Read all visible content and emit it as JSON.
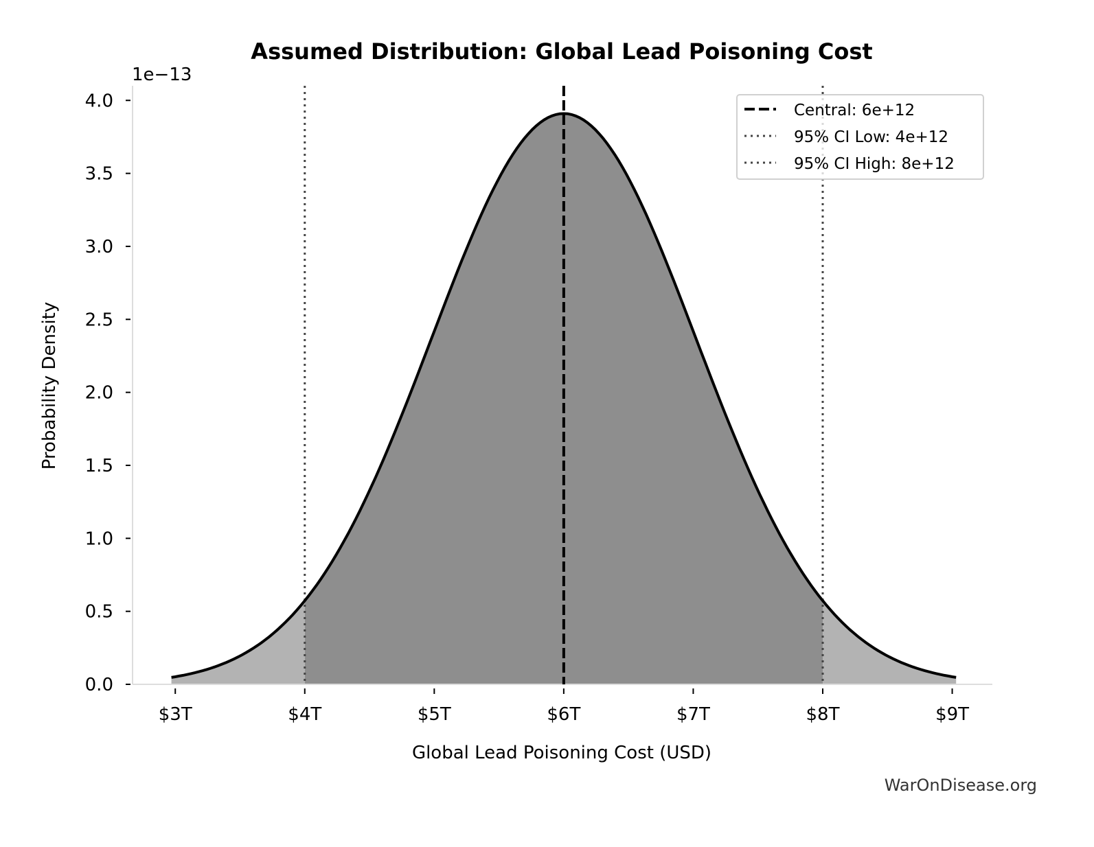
{
  "chart_data": {
    "type": "area",
    "title": "Assumed Distribution: Global Lead Poisoning Cost",
    "xlabel": "Global Lead Poisoning Cost (USD)",
    "ylabel": "Probability Density",
    "y_offset_label": "1e−13",
    "distribution": {
      "kind": "normal",
      "mean": 6000000000000.0,
      "sd": 1020400000000.0,
      "x_start": 2970000000000.0,
      "x_end": 9030000000000.0,
      "peak_density": 3.91e-13
    },
    "xlim": [
      2670000000000.0,
      9310000000000.0
    ],
    "ylim": [
      0,
      4.1e-13
    ],
    "x_ticks": [
      {
        "value": 3000000000000.0,
        "label": "$3T"
      },
      {
        "value": 4000000000000.0,
        "label": "$4T"
      },
      {
        "value": 5000000000000.0,
        "label": "$5T"
      },
      {
        "value": 6000000000000.0,
        "label": "$6T"
      },
      {
        "value": 7000000000000.0,
        "label": "$7T"
      },
      {
        "value": 8000000000000.0,
        "label": "$8T"
      },
      {
        "value": 9000000000000.0,
        "label": "$9T"
      }
    ],
    "y_ticks": [
      {
        "value": 0.0,
        "label": "0.0"
      },
      {
        "value": 0.5,
        "label": "0.5"
      },
      {
        "value": 1.0,
        "label": "1.0"
      },
      {
        "value": 1.5,
        "label": "1.5"
      },
      {
        "value": 2.0,
        "label": "2.0"
      },
      {
        "value": 2.5,
        "label": "2.5"
      },
      {
        "value": 3.0,
        "label": "3.0"
      },
      {
        "value": 3.5,
        "label": "3.5"
      },
      {
        "value": 4.0,
        "label": "4.0"
      }
    ],
    "reference_lines": [
      {
        "name": "Central: 6e+12",
        "x": 6000000000000.0,
        "style": "dashed",
        "color": "#000000"
      },
      {
        "name": "95% CI Low: 4e+12",
        "x": 4000000000000.0,
        "style": "dotted",
        "color": "#444444"
      },
      {
        "name": "95% CI High: 8e+12",
        "x": 8000000000000.0,
        "style": "dotted",
        "color": "#444444"
      }
    ],
    "colors": {
      "curve": "#000000",
      "ci_fill": "#8e8e8e",
      "tail_fill": "#b3b3b3",
      "spine": "#dddddd"
    },
    "legend_position": "top-right",
    "grid": false
  },
  "watermark": "WarOnDisease.org"
}
